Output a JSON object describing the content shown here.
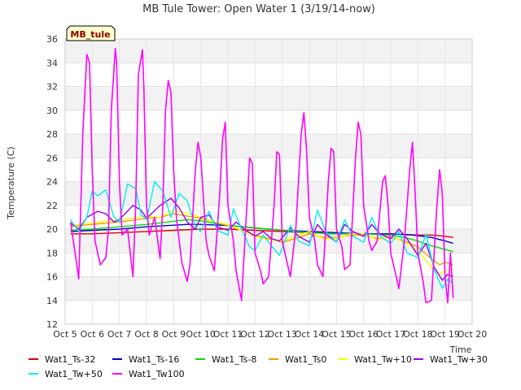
{
  "chart_data": {
    "type": "line",
    "title": "MB Tule Tower: Open Water 1 (3/19/14-now)",
    "xlabel": "Time",
    "ylabel": "Temperature (C)",
    "station_tag": "MB_tule",
    "ylim": [
      12,
      36
    ],
    "yticks": [
      12,
      14,
      16,
      18,
      20,
      22,
      24,
      26,
      28,
      30,
      32,
      34,
      36
    ],
    "xlim": [
      5,
      20
    ],
    "xticks": [
      {
        "value": 5,
        "label": "Oct 5"
      },
      {
        "value": 6,
        "label": "Oct 6"
      },
      {
        "value": 7,
        "label": "Oct 7"
      },
      {
        "value": 8,
        "label": "Oct 8"
      },
      {
        "value": 9,
        "label": "Oct 9"
      },
      {
        "value": 10,
        "label": "Oct 10"
      },
      {
        "value": 11,
        "label": "Oct 11"
      },
      {
        "value": 12,
        "label": "Oct 12"
      },
      {
        "value": 13,
        "label": "Oct 13"
      },
      {
        "value": 14,
        "label": "Oct 14"
      },
      {
        "value": 15,
        "label": "Oct 15"
      },
      {
        "value": 16,
        "label": "Oct 16"
      },
      {
        "value": 17,
        "label": "Oct 17"
      },
      {
        "value": 18,
        "label": "Oct 18"
      },
      {
        "value": 19,
        "label": "Oct 19"
      },
      {
        "value": 20,
        "label": "Oct 20"
      }
    ],
    "grid": true,
    "legend_position": "bottom",
    "series": [
      {
        "name": "Wat1_Ts-32",
        "color": "#dd0000",
        "x": [
          5.2,
          6,
          7,
          8,
          9,
          10,
          11,
          12,
          13,
          14,
          15,
          16,
          17,
          18,
          18.5,
          19,
          19.3
        ],
        "y": [
          19.6,
          19.6,
          19.7,
          19.8,
          19.9,
          20.0,
          20.0,
          19.9,
          19.8,
          19.7,
          19.6,
          19.6,
          19.6,
          19.5,
          19.5,
          19.4,
          19.3
        ]
      },
      {
        "name": "Wat1_Ts-16",
        "color": "#0000cc",
        "x": [
          5.2,
          6,
          7,
          8,
          8.8,
          9.5,
          10,
          11,
          12,
          13,
          14,
          15,
          16,
          17,
          17.8,
          18.5,
          19,
          19.3
        ],
        "y": [
          19.8,
          19.9,
          20.0,
          20.2,
          20.3,
          20.4,
          20.4,
          20.3,
          20.1,
          19.9,
          19.8,
          19.7,
          19.6,
          19.6,
          19.5,
          19.3,
          19.0,
          18.8
        ]
      },
      {
        "name": "Wat1_Ts-8",
        "color": "#00dd00",
        "x": [
          5.2,
          6,
          7,
          8,
          8.8,
          9.5,
          10,
          10.5,
          11,
          12,
          13,
          14,
          15,
          16,
          17,
          17.5,
          18,
          18.5,
          19,
          19.3
        ],
        "y": [
          19.9,
          20.0,
          20.2,
          20.4,
          20.6,
          20.8,
          20.7,
          20.5,
          20.3,
          20.1,
          19.9,
          19.7,
          19.6,
          19.6,
          19.5,
          19.3,
          19.0,
          18.6,
          18.3,
          18.1
        ]
      },
      {
        "name": "Wat1_Ts0",
        "color": "#ff9900",
        "x": [
          5.2,
          6,
          7,
          8,
          8.5,
          9,
          9.5,
          10,
          10.5,
          11,
          11.5,
          12,
          12.5,
          13,
          13.5,
          14,
          14.5,
          15,
          15.5,
          16,
          16.5,
          17,
          17.5,
          18,
          18.5,
          18.8,
          19,
          19.3
        ],
        "y": [
          20.2,
          20.4,
          20.6,
          20.9,
          21.0,
          21.3,
          21.1,
          20.9,
          20.6,
          20.3,
          19.9,
          19.5,
          19.2,
          18.9,
          19.2,
          19.6,
          19.3,
          19.3,
          19.5,
          19.5,
          19.2,
          19.3,
          19.0,
          18.5,
          17.5,
          17.0,
          17.2,
          17.0
        ]
      },
      {
        "name": "Wat1_Tw+10",
        "color": "#ffff00",
        "x": [
          5.2,
          6,
          7,
          8,
          8.5,
          9,
          9.4,
          10,
          10.5,
          11,
          11.5,
          12,
          12.5,
          13,
          13.5,
          14,
          14.5,
          15,
          15.5,
          16,
          16.5,
          17,
          17.5,
          18,
          18.5,
          18.8,
          19,
          19.3
        ],
        "y": [
          20.3,
          20.5,
          20.8,
          21.1,
          21.0,
          21.6,
          21.4,
          21.0,
          20.6,
          20.4,
          19.9,
          19.4,
          19.1,
          19.0,
          19.4,
          19.8,
          19.2,
          19.2,
          19.6,
          19.6,
          19.1,
          19.4,
          18.9,
          18.2,
          16.8,
          16.2,
          16.5,
          16.6
        ]
      },
      {
        "name": "Wat1_Tw+30",
        "color": "#9900ee",
        "x": [
          5.2,
          5.5,
          5.8,
          6.2,
          6.5,
          6.8,
          7.0,
          7.5,
          7.8,
          8.0,
          8.5,
          8.9,
          9.2,
          9.5,
          9.8,
          10.0,
          10.3,
          10.6,
          11.0,
          11.3,
          11.6,
          12.0,
          12.3,
          12.6,
          12.9,
          13.3,
          13.6,
          14.0,
          14.3,
          14.6,
          15.0,
          15.3,
          15.6,
          16.0,
          16.3,
          16.6,
          17.0,
          17.3,
          17.6,
          18.0,
          18.3,
          18.6,
          18.9,
          19.1,
          19.3
        ],
        "y": [
          20.5,
          20.0,
          21.0,
          21.5,
          21.3,
          20.6,
          20.8,
          22.0,
          21.6,
          20.9,
          22.0,
          22.6,
          21.8,
          20.6,
          20.0,
          21.0,
          21.2,
          20.2,
          19.9,
          20.6,
          20.0,
          19.4,
          19.8,
          19.2,
          19.0,
          20.1,
          19.4,
          18.9,
          20.4,
          19.6,
          18.9,
          20.4,
          19.8,
          19.4,
          20.4,
          19.6,
          19.2,
          20.0,
          19.2,
          17.8,
          18.8,
          16.8,
          15.7,
          16.2,
          16.0
        ]
      },
      {
        "name": "Wat1_Tw+50",
        "color": "#00eeee",
        "x": [
          5.2,
          5.5,
          5.8,
          6.0,
          6.2,
          6.5,
          6.8,
          7.0,
          7.3,
          7.6,
          7.8,
          8.0,
          8.3,
          8.6,
          8.9,
          9.2,
          9.5,
          9.8,
          10.0,
          10.3,
          10.6,
          11.0,
          11.2,
          11.5,
          11.8,
          12.0,
          12.3,
          12.6,
          12.9,
          13.3,
          13.6,
          14.0,
          14.3,
          14.6,
          15.0,
          15.3,
          15.6,
          16.0,
          16.3,
          16.6,
          17.0,
          17.3,
          17.6,
          18.0,
          18.3,
          18.6,
          18.9,
          19.1,
          19.3
        ],
        "y": [
          20.8,
          19.8,
          21.0,
          23.2,
          22.8,
          23.3,
          21.0,
          20.6,
          23.8,
          23.4,
          21.2,
          20.8,
          24.0,
          23.2,
          21.0,
          23.0,
          22.4,
          20.2,
          19.8,
          21.5,
          19.9,
          19.5,
          21.7,
          20.0,
          18.5,
          18.2,
          19.5,
          18.6,
          17.8,
          20.3,
          19.0,
          18.6,
          21.6,
          19.8,
          18.9,
          20.8,
          19.4,
          18.9,
          21.0,
          19.4,
          18.8,
          19.8,
          18.0,
          17.6,
          19.6,
          16.6,
          15.0,
          15.8,
          15.4
        ]
      },
      {
        "name": "Wat1_Tw100",
        "color": "#ff00ff",
        "x": [
          5.2,
          5.4,
          5.5,
          5.65,
          5.8,
          5.9,
          6.0,
          6.1,
          6.3,
          6.5,
          6.6,
          6.7,
          6.85,
          6.9,
          7.0,
          7.1,
          7.3,
          7.5,
          7.6,
          7.7,
          7.85,
          7.9,
          8.0,
          8.1,
          8.3,
          8.5,
          8.6,
          8.7,
          8.8,
          8.9,
          9.0,
          9.1,
          9.3,
          9.5,
          9.6,
          9.8,
          9.9,
          10.0,
          10.2,
          10.3,
          10.5,
          10.7,
          10.8,
          10.9,
          11.0,
          11.2,
          11.3,
          11.5,
          11.7,
          11.8,
          11.9,
          12.0,
          12.2,
          12.3,
          12.5,
          12.7,
          12.8,
          12.9,
          13.0,
          13.2,
          13.3,
          13.5,
          13.7,
          13.8,
          13.9,
          14.0,
          14.2,
          14.3,
          14.5,
          14.7,
          14.8,
          14.9,
          15.0,
          15.2,
          15.3,
          15.5,
          15.7,
          15.8,
          15.9,
          16.0,
          16.2,
          16.3,
          16.5,
          16.7,
          16.8,
          16.9,
          17.0,
          17.2,
          17.3,
          17.5,
          17.7,
          17.8,
          17.9,
          18.0,
          18.2,
          18.3,
          18.5,
          18.7,
          18.8,
          18.9,
          19.0,
          19.1,
          19.2,
          19.3
        ],
        "y": [
          20.6,
          17.5,
          15.8,
          28.0,
          34.7,
          34.0,
          25.0,
          19.0,
          17.0,
          17.6,
          20.0,
          30.0,
          35.2,
          34.0,
          24.0,
          19.5,
          20.0,
          16.0,
          22.0,
          33.0,
          35.1,
          32.0,
          22.0,
          19.5,
          21.0,
          17.5,
          22.0,
          30.0,
          32.5,
          31.5,
          25.0,
          21.0,
          17.2,
          15.6,
          17.0,
          25.0,
          27.3,
          26.0,
          19.0,
          17.8,
          16.5,
          23.0,
          27.5,
          29.0,
          22.0,
          19.0,
          16.5,
          14.0,
          22.0,
          26.0,
          25.5,
          18.0,
          16.5,
          15.4,
          16.0,
          22.0,
          26.5,
          26.3,
          19.0,
          17.0,
          16.0,
          20.0,
          28.0,
          29.8,
          26.5,
          21.0,
          19.0,
          17.0,
          16.0,
          24.0,
          26.8,
          26.5,
          20.0,
          18.5,
          16.6,
          17.0,
          26.0,
          29.0,
          28.0,
          22.0,
          19.0,
          18.2,
          19.0,
          24.0,
          24.5,
          22.0,
          18.0,
          16.0,
          15.0,
          19.0,
          25.0,
          27.3,
          23.0,
          18.0,
          15.5,
          13.8,
          14.0,
          22.0,
          25.0,
          23.0,
          16.0,
          13.8,
          18.0,
          14.2
        ]
      }
    ]
  }
}
